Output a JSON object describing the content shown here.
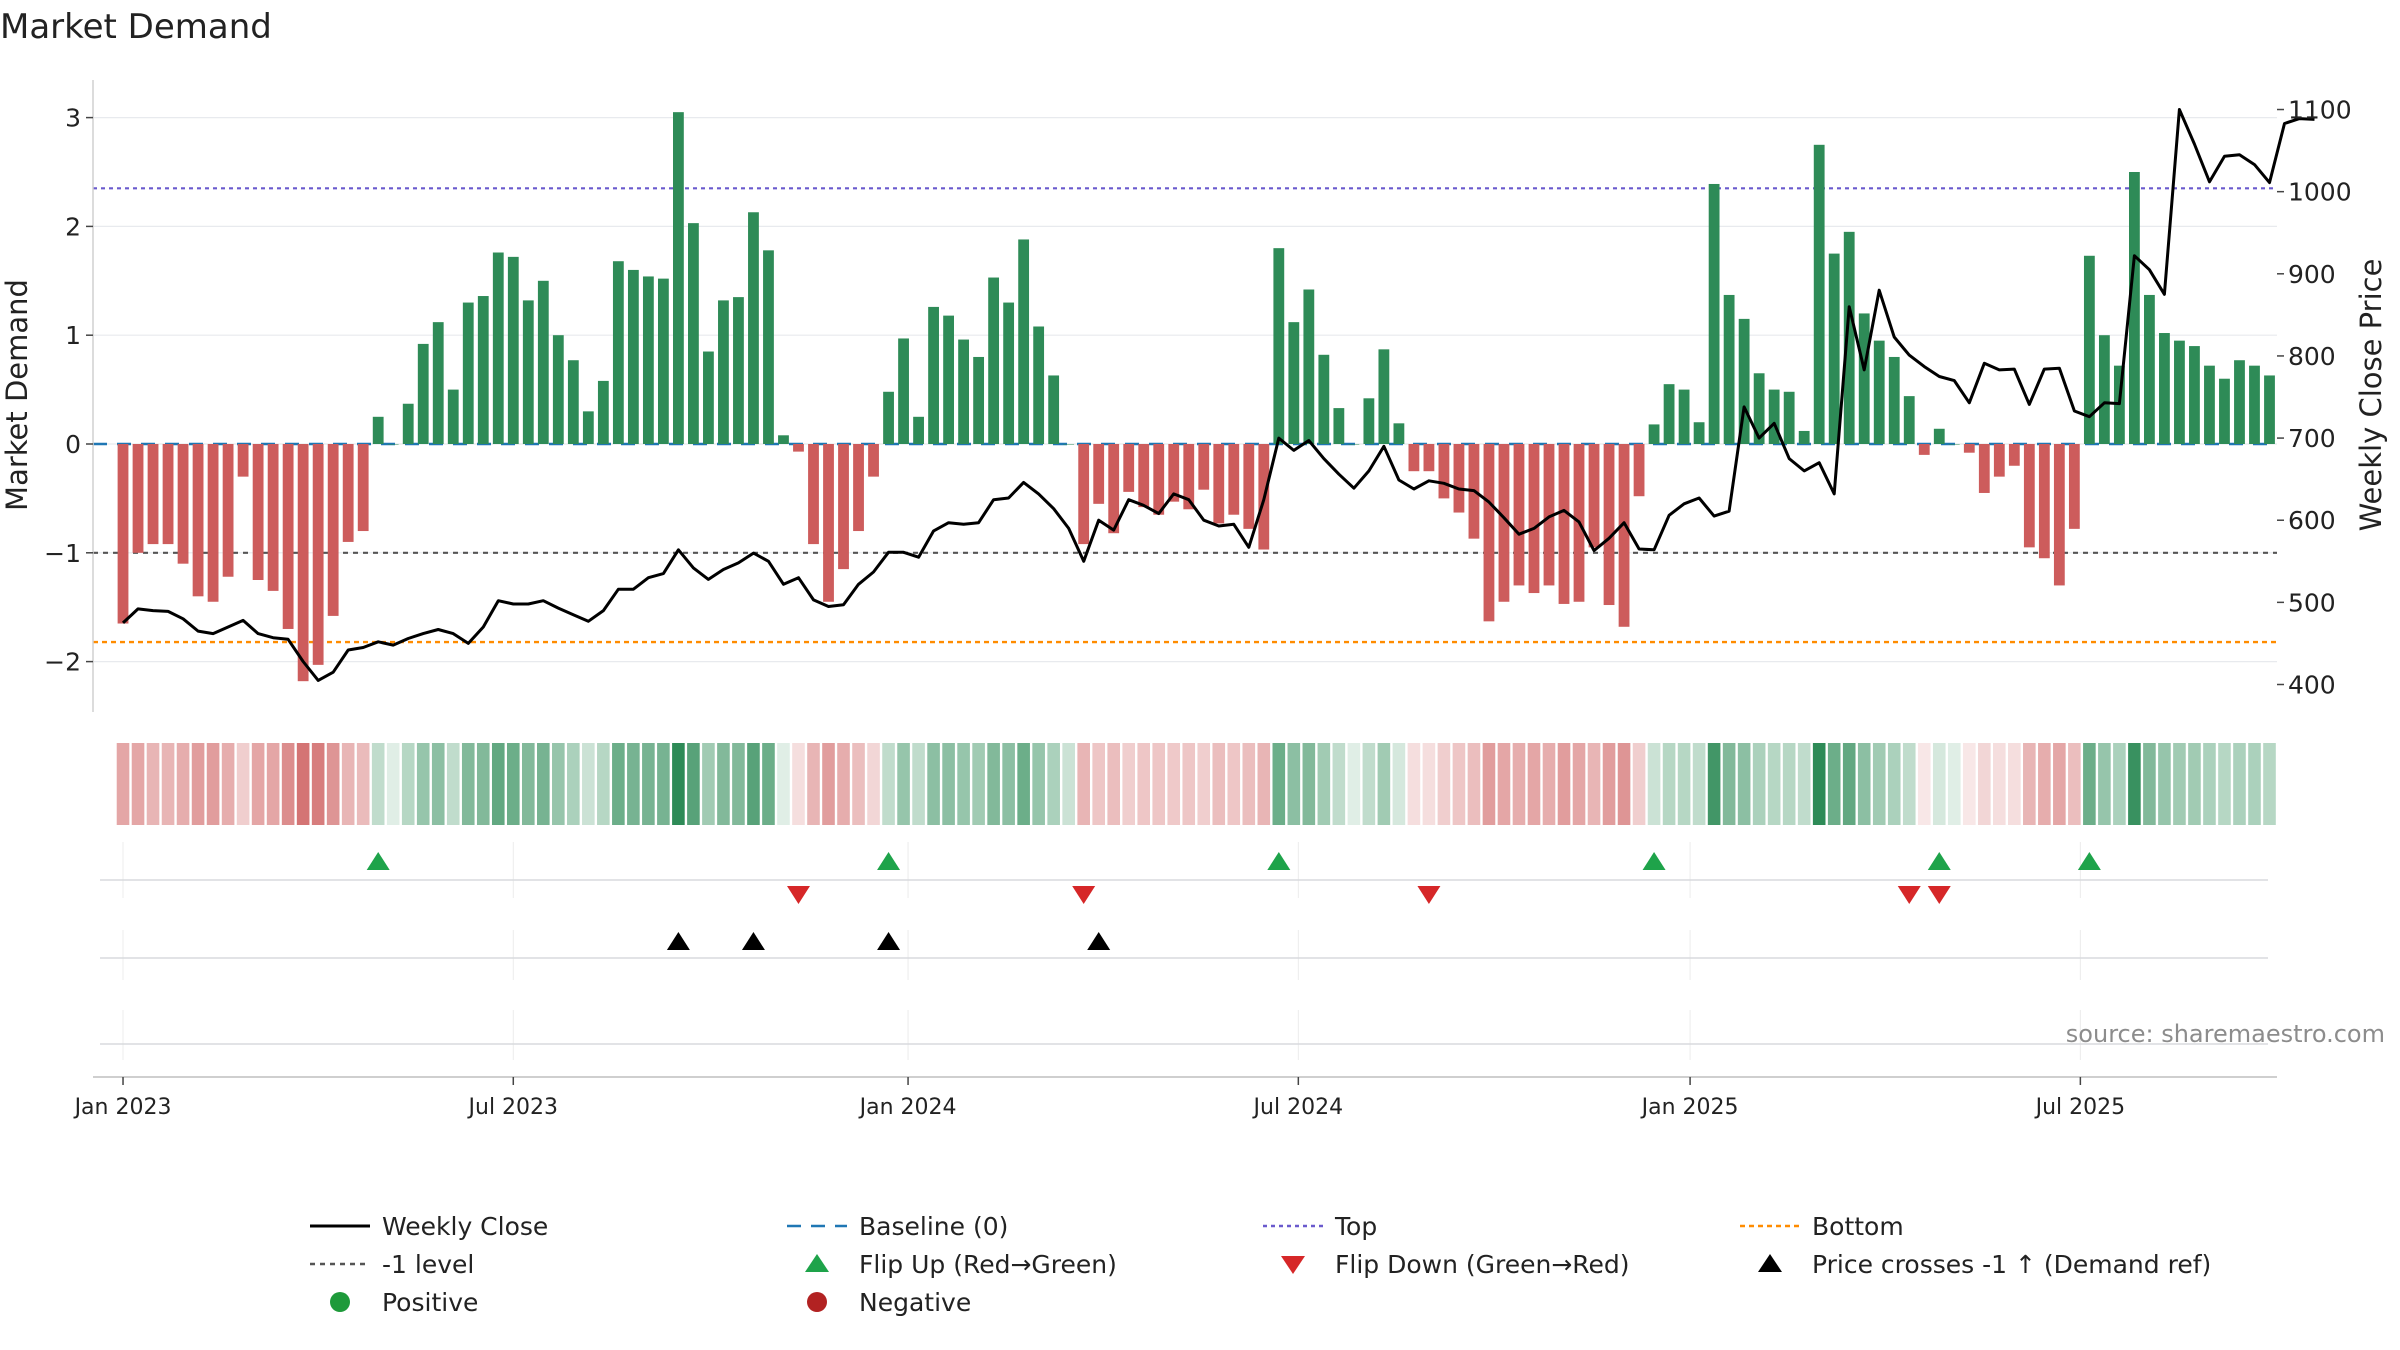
{
  "chart_data": {
    "type": "bar",
    "title": "Market Demand",
    "ylabel_left": "Market Demand",
    "ylabel_right": "Weekly Close Price",
    "source": "source: sharemaestro.com",
    "ylim_left": [
      -2.5,
      3.2
    ],
    "ylim_right": [
      370,
      1110
    ],
    "yticks_left": [
      {
        "v": 3,
        "label": "3"
      },
      {
        "v": 2,
        "label": "2"
      },
      {
        "v": 1,
        "label": "1"
      },
      {
        "v": 0,
        "label": "0"
      },
      {
        "v": -1,
        "label": "−1"
      },
      {
        "v": -2,
        "label": "−2"
      }
    ],
    "yticks_right": [
      {
        "v": 1100,
        "label": "1100"
      },
      {
        "v": 1000,
        "label": "1000"
      },
      {
        "v": 900,
        "label": "900"
      },
      {
        "v": 800,
        "label": "800"
      },
      {
        "v": 700,
        "label": "700"
      },
      {
        "v": 600,
        "label": "600"
      },
      {
        "v": 500,
        "label": "500"
      },
      {
        "v": 400,
        "label": "400"
      }
    ],
    "x_range_weeks": [
      -2,
      143.5
    ],
    "xticks": [
      {
        "w": 0,
        "label": "Jan 2023"
      },
      {
        "w": 26,
        "label": "Jul 2023"
      },
      {
        "w": 52.3,
        "label": "Jan 2024"
      },
      {
        "w": 78.3,
        "label": "Jul 2024"
      },
      {
        "w": 104.4,
        "label": "Jan 2025"
      },
      {
        "w": 130.4,
        "label": "Jul 2025"
      }
    ],
    "reference_lines": {
      "top": 2.35,
      "minus_one": -1,
      "bottom": -1.82,
      "baseline": 0
    },
    "demand": [
      -1.65,
      -1.0,
      -0.92,
      -0.92,
      -1.1,
      -1.4,
      -1.45,
      -1.22,
      -0.3,
      -1.25,
      -1.35,
      -1.7,
      -2.18,
      -2.03,
      -1.58,
      -0.9,
      -0.8,
      0.25,
      0,
      0.37,
      0.92,
      1.12,
      0.5,
      1.3,
      1.36,
      1.76,
      1.72,
      1.32,
      1.5,
      1.0,
      0.77,
      0.3,
      0.58,
      1.68,
      1.6,
      1.54,
      1.52,
      3.05,
      2.03,
      0.85,
      1.32,
      1.35,
      2.13,
      1.78,
      0.08,
      -0.07,
      -0.92,
      -1.45,
      -1.15,
      -0.8,
      -0.3,
      0.48,
      0.97,
      0.25,
      1.26,
      1.18,
      0.96,
      0.8,
      1.53,
      1.3,
      1.88,
      1.08,
      0.63,
      0,
      -0.92,
      -0.55,
      -0.82,
      -0.44,
      -0.58,
      -0.65,
      -0.53,
      -0.6,
      -0.42,
      -0.73,
      -0.65,
      -0.78,
      -0.97,
      1.8,
      1.12,
      1.42,
      0.82,
      0.33,
      0,
      0.42,
      0.87,
      0.19,
      -0.25,
      -0.25,
      -0.5,
      -0.63,
      -0.87,
      -1.63,
      -1.45,
      -1.3,
      -1.37,
      -1.3,
      -1.47,
      -1.45,
      -0.95,
      -1.48,
      -1.68,
      -0.48,
      0.18,
      0.55,
      0.5,
      0.2,
      2.39,
      1.37,
      1.15,
      0.65,
      0.5,
      0.48,
      0.12,
      2.75,
      1.75,
      1.95,
      1.2,
      0.95,
      0.8,
      0.44,
      -0.1,
      0.14,
      0,
      -0.08,
      -0.45,
      -0.3,
      -0.2,
      -0.95,
      -1.05,
      -1.3,
      -0.78,
      1.73,
      1.0,
      0.72,
      2.5,
      1.37,
      1.02,
      0.95,
      0.9,
      0.72,
      0.6,
      0.77,
      0.72,
      0.63
    ],
    "price": [
      475,
      492,
      490,
      489,
      480,
      465,
      462,
      470,
      478,
      462,
      457,
      455,
      428,
      405,
      415,
      442,
      445,
      452,
      448,
      456,
      462,
      467,
      462,
      450,
      470,
      502,
      498,
      498,
      502,
      493,
      485,
      477,
      490,
      516,
      516,
      530,
      535,
      564,
      542,
      528,
      540,
      548,
      560,
      550,
      522,
      530,
      503,
      495,
      497,
      522,
      537,
      561,
      561,
      555,
      587,
      597,
      595,
      597,
      625,
      627,
      646,
      632,
      614,
      590,
      550,
      600,
      588,
      625,
      618,
      608,
      632,
      625,
      600,
      593,
      595,
      567,
      625,
      700,
      685,
      697,
      675,
      656,
      639,
      660,
      690,
      649,
      638,
      648,
      645,
      638,
      636,
      622,
      603,
      583,
      590,
      604,
      612,
      598,
      563,
      578,
      597,
      565,
      564,
      606,
      620,
      627,
      605,
      611,
      738,
      700,
      718,
      675,
      660,
      670,
      632,
      860,
      783,
      880,
      823,
      801,
      787,
      775,
      770,
      743,
      791,
      783,
      784,
      741,
      784,
      785,
      733,
      726,
      743,
      742,
      922,
      905,
      875,
      1100,
      1058,
      1012,
      1043,
      1045,
      1033,
      1011,
      1083,
      1089,
      1088
    ],
    "color_strip_alpha": [
      0.55,
      0.55,
      0.45,
      0.45,
      0.5,
      0.6,
      0.6,
      0.5,
      0.3,
      0.55,
      0.55,
      0.7,
      0.85,
      0.8,
      0.65,
      0.45,
      0.42,
      0.3,
      0.15,
      0.35,
      0.5,
      0.55,
      0.3,
      0.6,
      0.6,
      0.75,
      0.7,
      0.6,
      0.65,
      0.5,
      0.4,
      0.25,
      0.35,
      0.7,
      0.65,
      0.65,
      0.65,
      1.0,
      0.8,
      0.45,
      0.6,
      0.6,
      0.8,
      0.7,
      0.15,
      0.2,
      0.45,
      0.6,
      0.5,
      0.4,
      0.25,
      0.3,
      0.5,
      0.3,
      0.55,
      0.55,
      0.5,
      0.45,
      0.6,
      0.55,
      0.7,
      0.5,
      0.4,
      0.25,
      0.45,
      0.35,
      0.4,
      0.3,
      0.35,
      0.35,
      0.33,
      0.35,
      0.3,
      0.4,
      0.35,
      0.4,
      0.45,
      0.7,
      0.55,
      0.6,
      0.45,
      0.3,
      0.15,
      0.3,
      0.45,
      0.2,
      0.2,
      0.2,
      0.3,
      0.35,
      0.4,
      0.6,
      0.55,
      0.5,
      0.55,
      0.5,
      0.6,
      0.55,
      0.45,
      0.6,
      0.65,
      0.3,
      0.25,
      0.35,
      0.35,
      0.3,
      0.9,
      0.6,
      0.55,
      0.4,
      0.35,
      0.35,
      0.3,
      1.0,
      0.7,
      0.75,
      0.55,
      0.45,
      0.4,
      0.3,
      0.15,
      0.2,
      0.15,
      0.15,
      0.25,
      0.2,
      0.2,
      0.45,
      0.5,
      0.55,
      0.4,
      0.7,
      0.5,
      0.4,
      0.95,
      0.6,
      0.5,
      0.45,
      0.45,
      0.4,
      0.35,
      0.4,
      0.4,
      0.35
    ],
    "flip_up_weeks": [
      17,
      51,
      77,
      102,
      121,
      131
    ],
    "flip_down_weeks": [
      45,
      64,
      87,
      119,
      121
    ],
    "price_cross_weeks": [
      37,
      42,
      51,
      65
    ],
    "legend": [
      {
        "key": "close",
        "label": "Weekly Close"
      },
      {
        "key": "baseline",
        "label": "Baseline (0)"
      },
      {
        "key": "top",
        "label": "Top"
      },
      {
        "key": "bottom",
        "label": "Bottom"
      },
      {
        "key": "minus1",
        "label": "-1 level"
      },
      {
        "key": "flipup",
        "label": "Flip Up (Red→Green)"
      },
      {
        "key": "flipdown",
        "label": "Flip Down (Green→Red)"
      },
      {
        "key": "cross",
        "label": "Price crosses -1 ↑ (Demand ref)"
      },
      {
        "key": "positive",
        "label": "Positive"
      },
      {
        "key": "negative",
        "label": "Negative"
      }
    ],
    "colors": {
      "positive": "#2e8b57",
      "negative": "#cd5c5c",
      "price": "#000000",
      "baseline": "#1f77b4",
      "top": "#6a5acd",
      "bottom": "#ff8c00",
      "minus1": "#555555",
      "flip_up": "#1ea34a",
      "flip_down": "#d62728",
      "cross": "#000000",
      "positive_dot": "#1e9a3a",
      "negative_dot": "#b22222"
    }
  }
}
